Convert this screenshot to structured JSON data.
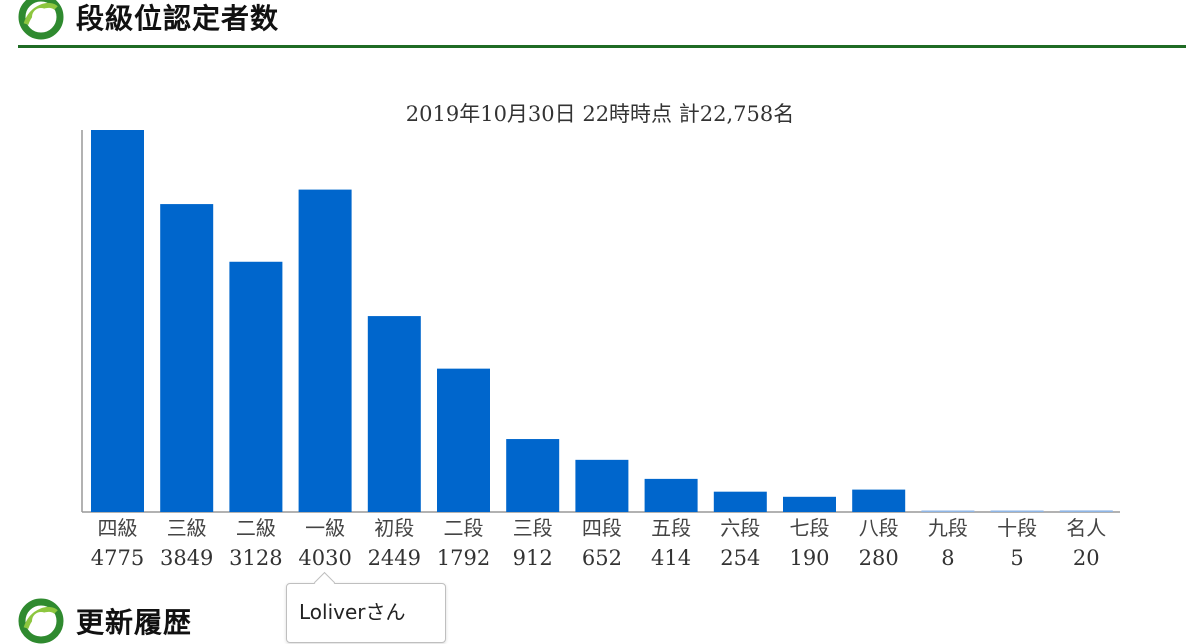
{
  "header": {
    "title": "段級位認定者数",
    "logo_icon": "green-leaf-ring-icon"
  },
  "footer_section": {
    "title": "更新履歴",
    "logo_icon": "green-leaf-ring-icon"
  },
  "tooltip": {
    "text": "Loliverさん"
  },
  "colors": {
    "bar": "#0066cc",
    "rule": "#1f6b24",
    "axis": "#999999",
    "text": "#333333"
  },
  "chart_data": {
    "type": "bar",
    "title": "2019年10月30日 22時時点 計22,758名",
    "categories": [
      "四級",
      "三級",
      "二級",
      "一級",
      "初段",
      "二段",
      "三段",
      "四段",
      "五段",
      "六段",
      "七段",
      "八段",
      "九段",
      "十段",
      "名人"
    ],
    "values": [
      4775,
      3849,
      3128,
      4030,
      2449,
      1792,
      912,
      652,
      414,
      254,
      190,
      280,
      8,
      5,
      20
    ],
    "value_labels": [
      "4775",
      "3849",
      "3128",
      "4030",
      "2449",
      "1792",
      "912",
      "652",
      "414",
      "254",
      "190",
      "280",
      "8",
      "5",
      "20"
    ],
    "xlabel": "",
    "ylabel": "",
    "ylim": [
      0,
      4775
    ],
    "grid": false,
    "legend": "none"
  }
}
